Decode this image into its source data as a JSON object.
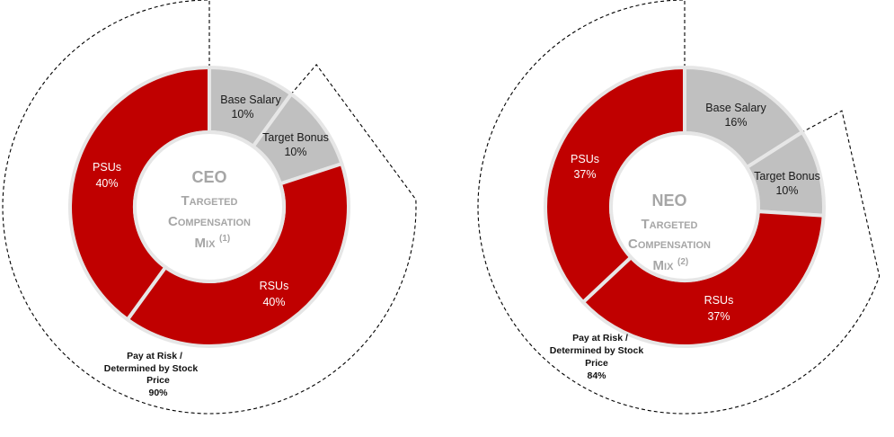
{
  "chart_data": [
    {
      "type": "pie",
      "variant": "donut",
      "center_title": {
        "line1": "CEO",
        "line2": "Targeted",
        "line3": "Compensation",
        "line4": "Mix",
        "footnote": "(1)"
      },
      "slices": [
        {
          "name": "Base Salary",
          "value": 10,
          "label": "10%",
          "color": "#c0c0c0"
        },
        {
          "name": "Target Bonus",
          "value": 10,
          "label": "10%",
          "color": "#c0c0c0"
        },
        {
          "name": "RSUs",
          "value": 40,
          "label": "40%",
          "color": "#c00000"
        },
        {
          "name": "PSUs",
          "value": 40,
          "label": "40%",
          "color": "#c00000"
        }
      ],
      "annotations": [
        {
          "name": "Pay at Risk / Determined by Stock Price",
          "lines": [
            "Pay at Risk /",
            "Determined by Stock",
            "Price"
          ],
          "value": 90,
          "label": "90%"
        }
      ]
    },
    {
      "type": "pie",
      "variant": "donut",
      "center_title": {
        "line1": "NEO",
        "line2": "Targeted",
        "line3": "Compensation",
        "line4": "Mix",
        "footnote": "(2)"
      },
      "slices": [
        {
          "name": "Base Salary",
          "value": 16,
          "label": "16%",
          "color": "#c0c0c0"
        },
        {
          "name": "Target Bonus",
          "value": 10,
          "label": "10%",
          "color": "#c0c0c0"
        },
        {
          "name": "RSUs",
          "value": 37,
          "label": "37%",
          "color": "#c00000"
        },
        {
          "name": "PSUs",
          "value": 37,
          "label": "37%",
          "color": "#c00000"
        }
      ],
      "annotations": [
        {
          "name": "Pay at Risk / Determined by Stock Price",
          "lines": [
            "Pay at Risk /",
            "Determined by Stock",
            "Price"
          ],
          "value": 84,
          "label": "84%"
        }
      ]
    }
  ],
  "colors": {
    "red": "#c00000",
    "gray": "#c0c0c0",
    "center_text": "#a6a6a6",
    "border": "#e6e6e6"
  }
}
